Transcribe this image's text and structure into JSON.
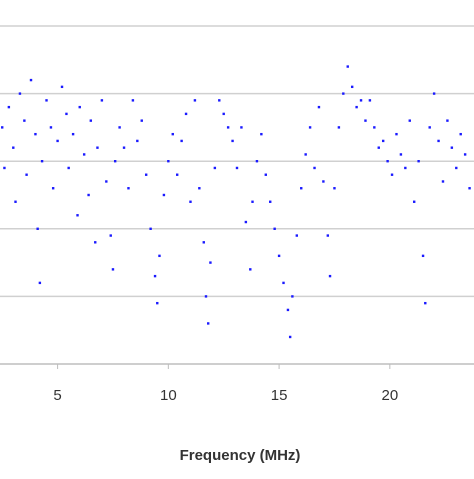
{
  "chart_data": {
    "type": "scatter",
    "x_label": "Frequency (MHz)",
    "color": "#1a1aff",
    "xlim": [
      2.4,
      23.8
    ],
    "xticks": [
      5,
      10,
      15,
      20
    ],
    "ylim": [
      0,
      5
    ],
    "ygrid": [
      1,
      2,
      3,
      4,
      5
    ],
    "grid": true,
    "x": [
      2.5,
      2.6,
      2.8,
      3.0,
      3.1,
      3.3,
      3.5,
      3.6,
      3.8,
      4.0,
      4.1,
      4.2,
      4.3,
      4.5,
      4.7,
      4.8,
      5.0,
      5.2,
      5.4,
      5.5,
      5.7,
      5.9,
      6.0,
      6.2,
      6.4,
      6.5,
      6.7,
      6.8,
      7.0,
      7.2,
      7.4,
      7.5,
      7.6,
      7.8,
      8.0,
      8.2,
      8.4,
      8.6,
      8.8,
      9.0,
      9.2,
      9.4,
      9.5,
      9.6,
      9.8,
      10.0,
      10.2,
      10.4,
      10.6,
      10.8,
      11.0,
      11.2,
      11.4,
      11.6,
      11.7,
      11.8,
      11.9,
      12.1,
      12.3,
      12.5,
      12.7,
      12.9,
      13.1,
      13.3,
      13.5,
      13.7,
      13.8,
      14.0,
      14.2,
      14.4,
      14.6,
      14.8,
      15.0,
      15.2,
      15.4,
      15.5,
      15.6,
      15.8,
      16.0,
      16.2,
      16.4,
      16.6,
      16.8,
      17.0,
      17.2,
      17.3,
      17.5,
      17.7,
      17.9,
      18.1,
      18.3,
      18.5,
      18.7,
      18.9,
      19.1,
      19.3,
      19.5,
      19.7,
      19.9,
      20.1,
      20.3,
      20.5,
      20.7,
      20.9,
      21.1,
      21.3,
      21.5,
      21.6,
      21.8,
      22.0,
      22.2,
      22.4,
      22.6,
      22.8,
      23.0,
      23.2,
      23.4,
      23.6
    ],
    "values": [
      3.5,
      2.9,
      3.8,
      3.2,
      2.4,
      4.0,
      3.6,
      2.8,
      4.2,
      3.4,
      2.0,
      1.2,
      3.0,
      3.9,
      3.5,
      2.6,
      3.3,
      4.1,
      3.7,
      2.9,
      3.4,
      2.2,
      3.8,
      3.1,
      2.5,
      3.6,
      1.8,
      3.2,
      3.9,
      2.7,
      1.9,
      1.4,
      3.0,
      3.5,
      3.2,
      2.6,
      3.9,
      3.3,
      3.6,
      2.8,
      2.0,
      1.3,
      0.9,
      1.6,
      2.5,
      3.0,
      3.4,
      2.8,
      3.3,
      3.7,
      2.4,
      3.9,
      2.6,
      1.8,
      1.0,
      0.6,
      1.5,
      2.9,
      3.9,
      3.7,
      3.5,
      3.3,
      2.9,
      3.5,
      2.1,
      1.4,
      2.4,
      3.0,
      3.4,
      2.8,
      2.4,
      2.0,
      1.6,
      1.2,
      0.8,
      0.4,
      1.0,
      1.9,
      2.6,
      3.1,
      3.5,
      2.9,
      3.8,
      2.7,
      1.9,
      1.3,
      2.6,
      3.5,
      4.0,
      4.4,
      4.1,
      3.8,
      3.9,
      3.6,
      3.9,
      3.5,
      3.2,
      3.3,
      3.0,
      2.8,
      3.4,
      3.1,
      2.9,
      3.6,
      2.4,
      3.0,
      1.6,
      0.9,
      3.5,
      4.0,
      3.3,
      2.7,
      3.6,
      3.2,
      2.9,
      3.4,
      3.1,
      2.6
    ]
  }
}
